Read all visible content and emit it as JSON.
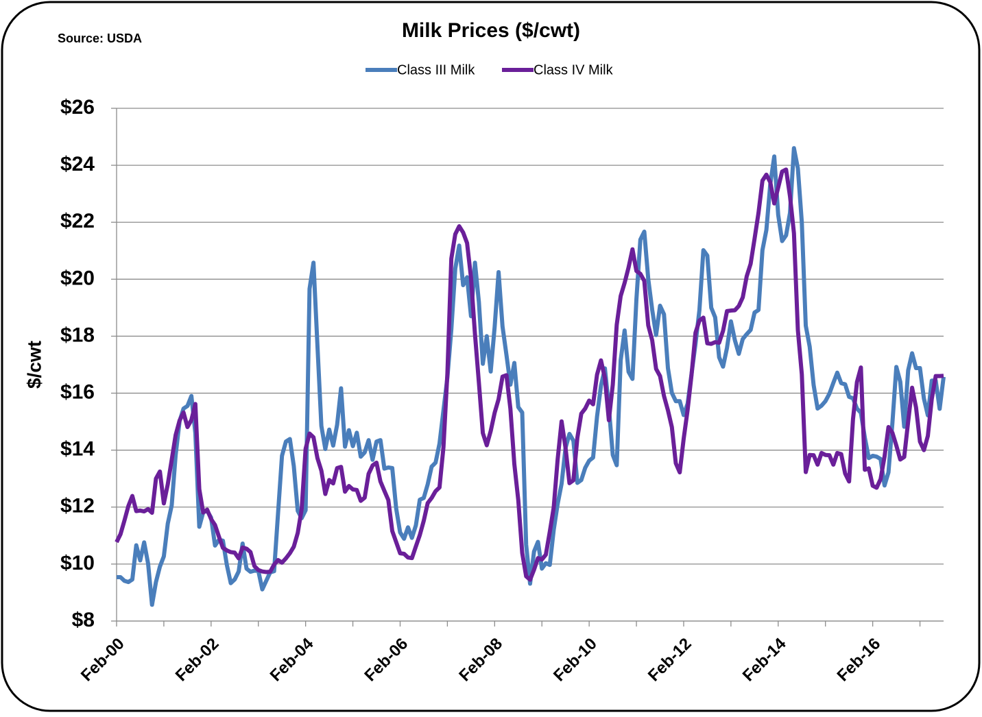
{
  "chart_data": {
    "type": "line",
    "title": "Milk Prices ($/cwt)",
    "source": "Source: USDA",
    "ylabel": "$/cwt",
    "categories": [
      "Feb-00",
      null,
      null,
      null,
      null,
      null,
      null,
      null,
      null,
      null,
      null,
      null,
      null,
      null,
      null,
      null,
      null,
      null,
      null,
      null,
      null,
      null,
      null,
      null,
      "Feb-02",
      null,
      null,
      null,
      null,
      null,
      null,
      null,
      null,
      null,
      null,
      null,
      null,
      null,
      null,
      null,
      null,
      null,
      null,
      null,
      null,
      null,
      null,
      null,
      "Feb-04",
      null,
      null,
      null,
      null,
      null,
      null,
      null,
      null,
      null,
      null,
      null,
      null,
      null,
      null,
      null,
      null,
      null,
      null,
      null,
      null,
      null,
      null,
      null,
      "Feb-06",
      null,
      null,
      null,
      null,
      null,
      null,
      null,
      null,
      null,
      null,
      null,
      null,
      null,
      null,
      null,
      null,
      null,
      null,
      null,
      null,
      null,
      null,
      null,
      "Feb-08",
      null,
      null,
      null,
      null,
      null,
      null,
      null,
      null,
      null,
      null,
      null,
      null,
      null,
      null,
      null,
      null,
      null,
      null,
      null,
      null,
      null,
      null,
      null,
      "Feb-10",
      null,
      null,
      null,
      null,
      null,
      null,
      null,
      null,
      null,
      null,
      null,
      null,
      null,
      null,
      null,
      null,
      null,
      null,
      null,
      null,
      null,
      null,
      null,
      "Feb-12",
      null,
      null,
      null,
      null,
      null,
      null,
      null,
      null,
      null,
      null,
      null,
      null,
      null,
      null,
      null,
      null,
      null,
      null,
      null,
      null,
      null,
      null,
      null,
      "Feb-14",
      null,
      null,
      null,
      null,
      null,
      null,
      null,
      null,
      null,
      null,
      null,
      null,
      null,
      null,
      null,
      null,
      null,
      null,
      null,
      null,
      null,
      null,
      null,
      "Feb-16",
      null,
      null,
      null,
      null,
      null,
      null,
      null,
      null,
      null,
      null,
      null,
      null,
      null,
      null,
      null,
      null,
      null,
      null
    ],
    "series": [
      {
        "name": "Class III Milk",
        "color": "#4a7ebb",
        "values": [
          9.54,
          9.54,
          9.41,
          9.37,
          9.46,
          10.66,
          10.13,
          10.76,
          10.02,
          8.57,
          9.37,
          9.91,
          10.27,
          11.42,
          12.06,
          13.83,
          15.02,
          15.46,
          15.55,
          15.9,
          14.6,
          11.31,
          11.82,
          11.87,
          11.63,
          10.65,
          10.85,
          10.82,
          9.97,
          9.33,
          9.46,
          9.74,
          10.72,
          9.84,
          9.73,
          9.77,
          9.76,
          9.11,
          9.41,
          9.71,
          9.75,
          11.78,
          13.8,
          14.3,
          14.39,
          13.44,
          11.87,
          11.61,
          11.89,
          19.66,
          20.58,
          17.68,
          14.85,
          14.04,
          14.72,
          14.16,
          14.89,
          16.17,
          14.12,
          14.7,
          14.14,
          14.61,
          13.77,
          13.92,
          14.35,
          13.66,
          14.3,
          14.35,
          13.35,
          13.39,
          13.37,
          11.95,
          11.11,
          10.89,
          11.29,
          10.92,
          11.36,
          12.26,
          12.32,
          12.8,
          13.42,
          13.56,
          14.23,
          15.39,
          16.55,
          18.23,
          20.37,
          21.18,
          19.79,
          20.07,
          18.7,
          20.58,
          19.2,
          17.03,
          18.0,
          16.76,
          18.32,
          20.25,
          18.34,
          17.34,
          16.3,
          17.06,
          15.51,
          15.32,
          10.68,
          9.31,
          10.44,
          10.78,
          9.84,
          10.03,
          9.97,
          11.2,
          12.11,
          12.82,
          14.08,
          14.57,
          14.33,
          12.85,
          12.95,
          13.38,
          13.63,
          13.74,
          15.18,
          16.26,
          16.87,
          15.51,
          13.83,
          13.47,
          17.15,
          18.2,
          16.75,
          16.5,
          19.3,
          21.39,
          21.67,
          20.01,
          18.93,
          18.04,
          19.07,
          18.77,
          16.88,
          16.01,
          15.72,
          15.72,
          15.23,
          15.63,
          16.68,
          17.73,
          18.92,
          21.02,
          20.83,
          19.0,
          18.66,
          17.26,
          16.93,
          17.59,
          18.52,
          17.86,
          17.38,
          17.9,
          18.07,
          18.22,
          18.83,
          18.92,
          21.02,
          21.73,
          23.35,
          24.31,
          22.26,
          21.34,
          21.54,
          22.33,
          24.6,
          23.89,
          21.99,
          18.37,
          17.63,
          16.28,
          15.46,
          15.56,
          15.72,
          15.98,
          16.36,
          16.72,
          16.35,
          16.31,
          15.87,
          15.82,
          15.46,
          15.31,
          14.44,
          13.72,
          13.8,
          13.77,
          13.69,
          12.76,
          13.22,
          14.95,
          16.92,
          16.4,
          14.82,
          16.8,
          17.4,
          16.88,
          16.88,
          15.81,
          15.22,
          16.44,
          16.44,
          15.45,
          16.57
        ]
      },
      {
        "name": "Class IV Milk",
        "color": "#6a1f99",
        "values": [
          10.77,
          11.05,
          11.53,
          12.04,
          12.39,
          11.86,
          11.88,
          11.85,
          11.93,
          11.8,
          13.0,
          13.25,
          12.13,
          12.8,
          13.66,
          14.53,
          15.04,
          15.32,
          14.81,
          15.06,
          15.62,
          12.63,
          11.81,
          11.91,
          11.58,
          11.37,
          10.96,
          10.57,
          10.48,
          10.42,
          10.4,
          10.2,
          10.58,
          10.54,
          10.42,
          9.93,
          9.79,
          9.74,
          9.72,
          9.73,
          9.98,
          10.14,
          10.05,
          10.2,
          10.38,
          10.61,
          11.09,
          11.93,
          14.05,
          14.58,
          14.45,
          13.72,
          13.28,
          12.46,
          12.95,
          12.83,
          13.37,
          13.41,
          12.54,
          12.74,
          12.62,
          12.6,
          12.22,
          12.33,
          13.17,
          13.46,
          13.56,
          12.9,
          12.57,
          12.25,
          11.16,
          10.77,
          10.38,
          10.36,
          10.23,
          10.21,
          10.62,
          11.02,
          11.52,
          12.14,
          12.32,
          12.56,
          12.69,
          14.1,
          16.69,
          20.72,
          21.58,
          21.86,
          21.64,
          21.27,
          20.05,
          18.08,
          16.37,
          14.6,
          14.17,
          14.67,
          15.31,
          15.79,
          16.58,
          16.63,
          15.45,
          13.51,
          12.25,
          10.39,
          9.57,
          9.45,
          9.8,
          10.21,
          10.16,
          10.33,
          11.13,
          11.99,
          13.68,
          15.01,
          14.08,
          12.84,
          12.94,
          14.43,
          15.28,
          15.46,
          15.74,
          15.61,
          16.65,
          17.15,
          16.52,
          15.05,
          16.3,
          18.4,
          19.41,
          19.87,
          20.41,
          21.05,
          20.29,
          20.19,
          19.94,
          18.38,
          17.86,
          16.85,
          16.6,
          15.9,
          15.4,
          14.81,
          13.54,
          13.22,
          14.4,
          15.41,
          16.65,
          18.12,
          18.55,
          18.65,
          17.75,
          17.73,
          17.79,
          17.77,
          18.19,
          18.88,
          18.9,
          18.91,
          19.06,
          19.36,
          20.1,
          20.54,
          21.42,
          22.33,
          23.46,
          23.67,
          23.4,
          22.66,
          23.22,
          23.78,
          23.85,
          22.91,
          21.62,
          18.21,
          16.66,
          13.23,
          13.83,
          13.82,
          13.49,
          13.9,
          13.83,
          13.82,
          13.49,
          13.9,
          13.86,
          13.18,
          12.9,
          15.09,
          16.39,
          16.9,
          13.31,
          13.36,
          12.75,
          12.68,
          12.98,
          13.77,
          14.81,
          14.61,
          14.16,
          13.67,
          13.76,
          15.0,
          16.19,
          15.5,
          14.3,
          14.0,
          14.5,
          15.8,
          16.6,
          16.6,
          16.61
        ]
      }
    ],
    "ylim": [
      8,
      26
    ],
    "yticks": [
      {
        "value": 8,
        "label": "$8"
      },
      {
        "value": 10,
        "label": "$10"
      },
      {
        "value": 12,
        "label": "$12"
      },
      {
        "value": 14,
        "label": "$14"
      },
      {
        "value": 16,
        "label": "$16"
      },
      {
        "value": 18,
        "label": "$18"
      },
      {
        "value": 20,
        "label": "$20"
      },
      {
        "value": 22,
        "label": "$22"
      },
      {
        "value": 24,
        "label": "$24"
      },
      {
        "value": 26,
        "label": "$26"
      }
    ],
    "grid": true,
    "legend": "top"
  }
}
